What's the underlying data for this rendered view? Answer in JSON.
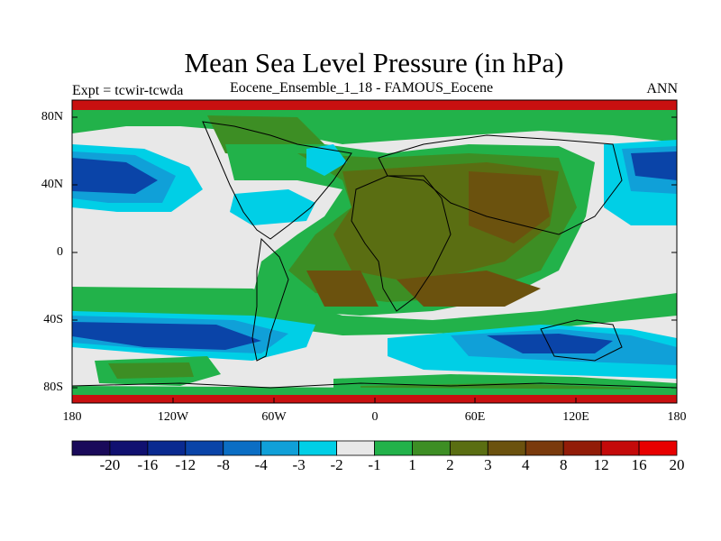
{
  "title": "Mean Sea Level Pressure (in hPa)",
  "subtitle_left": "Expt = tcwir-tcwda",
  "subtitle_center": "Eocene_Ensemble_1_18 - FAMOUS_Eocene",
  "subtitle_right": "ANN",
  "lat_labels": [
    "80N",
    "40N",
    "0",
    "40S",
    "80S"
  ],
  "lon_labels": [
    "180",
    "120W",
    "60W",
    "0",
    "60E",
    "120E",
    "180"
  ],
  "colorbar": {
    "labels": [
      "-20",
      "-16",
      "-12",
      "-8",
      "-4",
      "-3",
      "-2",
      "-1",
      "1",
      "2",
      "3",
      "4",
      "8",
      "12",
      "16",
      "20"
    ],
    "colors": [
      "#1a0a5a",
      "#101070",
      "#0a2a90",
      "#0a44a8",
      "#0b6ec4",
      "#10a0d8",
      "#00cfe6",
      "#e8e8e8",
      "#22b24a",
      "#3d8e24",
      "#5a6e12",
      "#6b520e",
      "#7a3a0c",
      "#921c08",
      "#c40a0a",
      "#e80000"
    ]
  },
  "colors": {
    "land_outline": "#000000",
    "band_red": "#c81010"
  }
}
